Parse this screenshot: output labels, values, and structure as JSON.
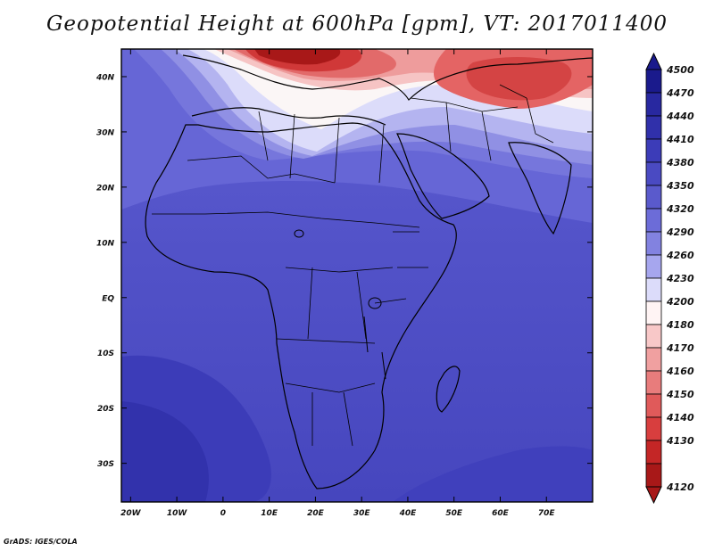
{
  "title": "Geopotential Height at 600hPa [gpm], VT: 2017011400",
  "credit": "GrADS: IGES/COLA",
  "map": {
    "lon_labels": [
      "20W",
      "10W",
      "0",
      "10E",
      "20E",
      "30E",
      "40E",
      "50E",
      "60E",
      "70E"
    ],
    "lat_labels": [
      "40N",
      "30N",
      "20N",
      "10N",
      "EQ",
      "10S",
      "20S",
      "30S"
    ],
    "lon_values": [
      -20,
      -10,
      0,
      10,
      20,
      30,
      40,
      50,
      60,
      70
    ],
    "lat_values": [
      40,
      30,
      20,
      10,
      0,
      -10,
      -20,
      -30
    ],
    "lon_range": [
      -22,
      80
    ],
    "lat_range": [
      -37,
      45
    ]
  },
  "colorbar": {
    "levels": [
      "4500",
      "4470",
      "4440",
      "4410",
      "4380",
      "4350",
      "4320",
      "4290",
      "4260",
      "4230",
      "4200",
      "4180",
      "4170",
      "4160",
      "4150",
      "4140",
      "4130",
      "4120"
    ],
    "colors": [
      "#1a1a8c",
      "#2828a0",
      "#3030aa",
      "#3c3cb8",
      "#4a4ac2",
      "#5a5acc",
      "#6c6cd8",
      "#8282e0",
      "#a6a6ee",
      "#dcdcfa",
      "#fff4f4",
      "#f8c8c8",
      "#f0a0a0",
      "#e87c7c",
      "#e05a5a",
      "#d83e3e",
      "#c42626",
      "#a81818"
    ]
  }
}
